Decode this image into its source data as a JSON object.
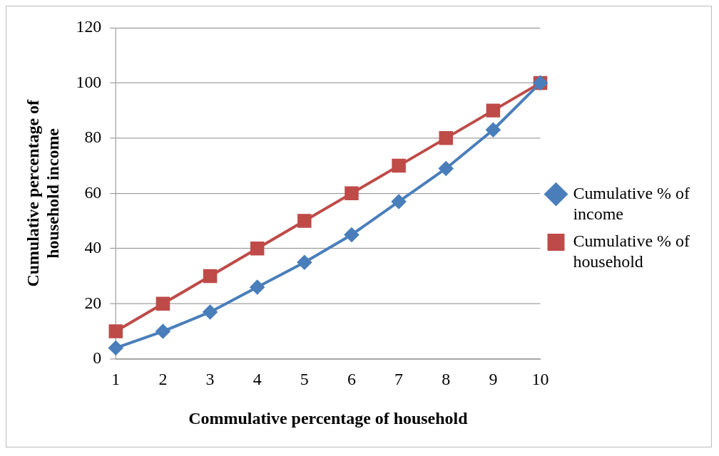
{
  "chart_data": {
    "type": "line",
    "xlabel": "Commulative percentage of household",
    "ylabel": "Cumulative percentage of household income",
    "categories": [
      "1",
      "2",
      "3",
      "4",
      "5",
      "6",
      "7",
      "8",
      "9",
      "10"
    ],
    "series": [
      {
        "name": "Cumulative % of income",
        "color": "#4a7ebb",
        "marker": "diamond",
        "values": [
          4,
          10,
          17,
          26,
          35,
          45,
          57,
          69,
          83,
          100
        ]
      },
      {
        "name": "Cumulative % of household",
        "color": "#be4b48",
        "marker": "square",
        "values": [
          10,
          20,
          30,
          40,
          50,
          60,
          70,
          80,
          90,
          100
        ]
      }
    ],
    "ylim": [
      0,
      120
    ],
    "yticks": [
      0,
      20,
      40,
      60,
      80,
      100,
      120
    ],
    "grid": "y",
    "legend": "right"
  }
}
